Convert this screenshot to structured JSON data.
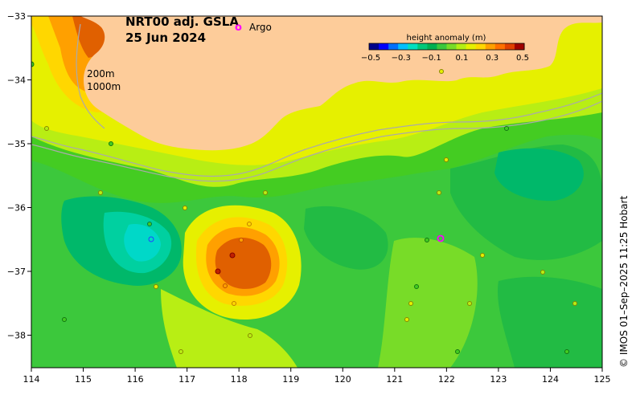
{
  "title": {
    "line1": "NRT00 adj. GSLA",
    "line2": "25 Jun 2024"
  },
  "legend": {
    "marker_symbol": "o",
    "marker_label": "Argo",
    "marker_color": "#ff00ff"
  },
  "isobaths": {
    "label1": "200m",
    "label2": "1000m"
  },
  "colorbar": {
    "title": "height anomaly (m)",
    "ticks": [
      "−0.5",
      "−0.3",
      "−0.1",
      "0.1",
      "0.3",
      "0.5"
    ],
    "colors": [
      "#00008b",
      "#0000ff",
      "#0070ff",
      "#00c0ff",
      "#00e0c0",
      "#00c878",
      "#00b050",
      "#3cc83c",
      "#78dc28",
      "#b4ee14",
      "#e6f000",
      "#ffd700",
      "#ffa000",
      "#ff7000",
      "#e04000",
      "#a00000"
    ]
  },
  "x_axis": {
    "ticks": [
      "114",
      "115",
      "116",
      "117",
      "118",
      "119",
      "120",
      "121",
      "122",
      "123",
      "124",
      "125"
    ]
  },
  "y_axis": {
    "ticks": [
      "−33",
      "−34",
      "−35",
      "−36",
      "−37",
      "−38"
    ]
  },
  "credit": "© IMOS 01–Sep–2025 11:25 Hobart",
  "colors": {
    "land": "#fdcc9a",
    "background_ocean": "#33cc33",
    "isobath_line": "#aaaaaa"
  }
}
